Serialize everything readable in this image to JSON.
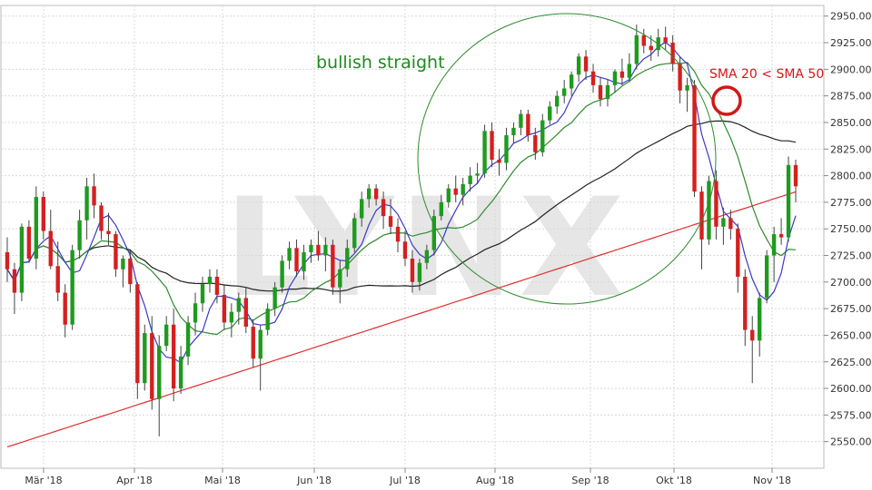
{
  "chart_data": {
    "type": "candlestick",
    "ylim": [
      2525,
      2960
    ],
    "grid": true,
    "x_labels": [
      "Mär '18",
      "Apr '18",
      "Mai '18",
      "Jun '18",
      "Jul '18",
      "Aug '18",
      "Sep '18",
      "Okt '18",
      "Nov '18"
    ],
    "y_ticks": [
      "2550.00",
      "2575.00",
      "2600.00",
      "2625.00",
      "2650.00",
      "2675.00",
      "2700.00",
      "2725.00",
      "2750.00",
      "2775.00",
      "2800.00",
      "2825.00",
      "2850.00",
      "2875.00",
      "2900.00",
      "2925.00",
      "2950.00"
    ],
    "colors": {
      "up": "#1f9a1f",
      "down": "#d42020",
      "sma20": "#3a3ac8",
      "sma50": "#2e8b2e",
      "sma100": "#222222",
      "sma200": "#e03030",
      "grid": "#d8d8d8",
      "watermark": "#e6e6e6"
    },
    "annotations": {
      "trend_label": "bullish straight",
      "cross_label": "SMA 20 < SMA 50"
    },
    "watermark": "LYNX",
    "candles": [
      [
        2728,
        2742,
        2700,
        2712
      ],
      [
        2712,
        2718,
        2670,
        2690
      ],
      [
        2690,
        2755,
        2682,
        2752
      ],
      [
        2752,
        2758,
        2718,
        2722
      ],
      [
        2722,
        2790,
        2712,
        2780
      ],
      [
        2780,
        2785,
        2740,
        2748
      ],
      [
        2748,
        2768,
        2712,
        2715
      ],
      [
        2715,
        2738,
        2682,
        2690
      ],
      [
        2690,
        2698,
        2648,
        2660
      ],
      [
        2660,
        2735,
        2655,
        2730
      ],
      [
        2730,
        2768,
        2722,
        2758
      ],
      [
        2758,
        2798,
        2740,
        2790
      ],
      [
        2790,
        2802,
        2760,
        2772
      ],
      [
        2772,
        2775,
        2740,
        2748
      ],
      [
        2748,
        2765,
        2735,
        2745
      ],
      [
        2745,
        2748,
        2705,
        2712
      ],
      [
        2712,
        2725,
        2695,
        2722
      ],
      [
        2722,
        2730,
        2690,
        2698
      ],
      [
        2698,
        2700,
        2590,
        2605
      ],
      [
        2605,
        2660,
        2598,
        2652
      ],
      [
        2652,
        2668,
        2580,
        2590
      ],
      [
        2590,
        2650,
        2555,
        2640
      ],
      [
        2640,
        2668,
        2635,
        2660
      ],
      [
        2660,
        2675,
        2588,
        2600
      ],
      [
        2600,
        2640,
        2595,
        2630
      ],
      [
        2630,
        2668,
        2622,
        2662
      ],
      [
        2662,
        2690,
        2650,
        2680
      ],
      [
        2680,
        2705,
        2672,
        2698
      ],
      [
        2698,
        2712,
        2690,
        2705
      ],
      [
        2705,
        2712,
        2680,
        2688
      ],
      [
        2688,
        2698,
        2655,
        2662
      ],
      [
        2662,
        2680,
        2648,
        2672
      ],
      [
        2672,
        2690,
        2660,
        2685
      ],
      [
        2685,
        2695,
        2652,
        2658
      ],
      [
        2658,
        2665,
        2620,
        2628
      ],
      [
        2628,
        2660,
        2598,
        2655
      ],
      [
        2655,
        2680,
        2650,
        2675
      ],
      [
        2675,
        2700,
        2668,
        2695
      ],
      [
        2695,
        2725,
        2690,
        2720
      ],
      [
        2720,
        2738,
        2712,
        2732
      ],
      [
        2732,
        2740,
        2705,
        2710
      ],
      [
        2710,
        2735,
        2702,
        2728
      ],
      [
        2728,
        2740,
        2718,
        2735
      ],
      [
        2735,
        2748,
        2720,
        2725
      ],
      [
        2725,
        2742,
        2710,
        2735
      ],
      [
        2735,
        2740,
        2688,
        2695
      ],
      [
        2695,
        2720,
        2680,
        2712
      ],
      [
        2712,
        2740,
        2705,
        2732
      ],
      [
        2732,
        2765,
        2728,
        2760
      ],
      [
        2760,
        2785,
        2752,
        2778
      ],
      [
        2778,
        2792,
        2770,
        2788
      ],
      [
        2788,
        2792,
        2772,
        2778
      ],
      [
        2778,
        2785,
        2750,
        2762
      ],
      [
        2762,
        2778,
        2745,
        2752
      ],
      [
        2752,
        2760,
        2728,
        2738
      ],
      [
        2738,
        2748,
        2715,
        2722
      ],
      [
        2722,
        2730,
        2690,
        2700
      ],
      [
        2700,
        2722,
        2692,
        2718
      ],
      [
        2718,
        2735,
        2712,
        2730
      ],
      [
        2730,
        2768,
        2725,
        2762
      ],
      [
        2762,
        2782,
        2758,
        2775
      ],
      [
        2775,
        2792,
        2770,
        2788
      ],
      [
        2788,
        2800,
        2775,
        2782
      ],
      [
        2782,
        2798,
        2772,
        2792
      ],
      [
        2792,
        2808,
        2785,
        2800
      ],
      [
        2800,
        2812,
        2792,
        2802
      ],
      [
        2802,
        2848,
        2798,
        2842
      ],
      [
        2842,
        2850,
        2808,
        2815
      ],
      [
        2815,
        2825,
        2800,
        2812
      ],
      [
        2812,
        2845,
        2805,
        2838
      ],
      [
        2838,
        2850,
        2830,
        2845
      ],
      [
        2845,
        2862,
        2838,
        2858
      ],
      [
        2858,
        2862,
        2832,
        2838
      ],
      [
        2838,
        2845,
        2815,
        2822
      ],
      [
        2822,
        2858,
        2818,
        2852
      ],
      [
        2852,
        2870,
        2848,
        2865
      ],
      [
        2865,
        2880,
        2858,
        2875
      ],
      [
        2875,
        2890,
        2868,
        2882
      ],
      [
        2882,
        2898,
        2875,
        2895
      ],
      [
        2895,
        2915,
        2888,
        2912
      ],
      [
        2912,
        2918,
        2890,
        2898
      ],
      [
        2898,
        2905,
        2878,
        2885
      ],
      [
        2885,
        2892,
        2865,
        2872
      ],
      [
        2872,
        2890,
        2865,
        2885
      ],
      [
        2885,
        2900,
        2878,
        2898
      ],
      [
        2898,
        2910,
        2885,
        2892
      ],
      [
        2892,
        2915,
        2888,
        2905
      ],
      [
        2905,
        2942,
        2900,
        2932
      ],
      [
        2932,
        2938,
        2915,
        2922
      ],
      [
        2922,
        2932,
        2908,
        2918
      ],
      [
        2918,
        2938,
        2912,
        2930
      ],
      [
        2930,
        2940,
        2918,
        2925
      ],
      [
        2925,
        2932,
        2898,
        2905
      ],
      [
        2905,
        2912,
        2868,
        2880
      ],
      [
        2880,
        2892,
        2860,
        2885
      ],
      [
        2885,
        2890,
        2780,
        2785
      ],
      [
        2785,
        2790,
        2712,
        2740
      ],
      [
        2740,
        2800,
        2735,
        2795
      ],
      [
        2795,
        2805,
        2740,
        2752
      ],
      [
        2752,
        2770,
        2735,
        2760
      ],
      [
        2760,
        2768,
        2740,
        2750
      ],
      [
        2750,
        2755,
        2690,
        2705
      ],
      [
        2705,
        2712,
        2640,
        2655
      ],
      [
        2655,
        2668,
        2605,
        2645
      ],
      [
        2645,
        2690,
        2630,
        2685
      ],
      [
        2685,
        2730,
        2680,
        2725
      ],
      [
        2725,
        2752,
        2700,
        2745
      ],
      [
        2745,
        2760,
        2735,
        2742
      ],
      [
        2742,
        2818,
        2738,
        2810
      ],
      [
        2810,
        2815,
        2775,
        2790
      ]
    ]
  }
}
